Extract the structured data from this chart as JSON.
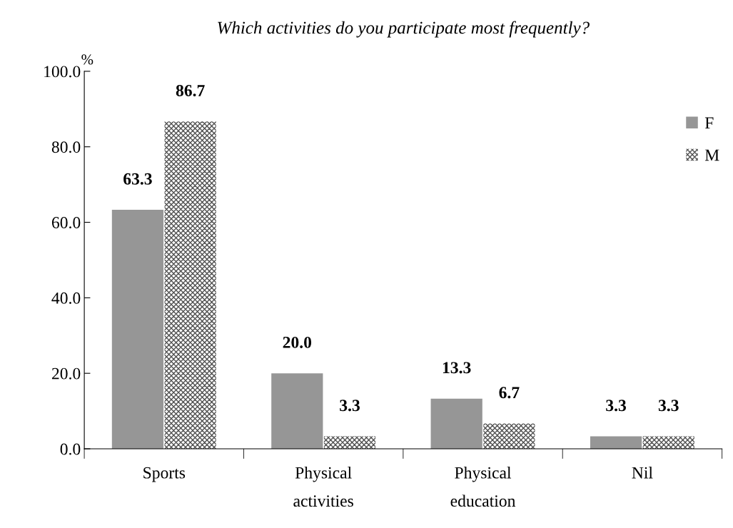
{
  "chart_data": {
    "type": "bar",
    "title": "Which activities do you participate most frequently?",
    "ylabel": "%",
    "categories": [
      "Sports",
      "Physical\nactivities",
      "Physical\neducation",
      "Nil"
    ],
    "series": [
      {
        "name": "F",
        "color": "#969696",
        "values": [
          63.3,
          20.0,
          13.3,
          3.3
        ],
        "value_labels": [
          "63.3",
          "20.0",
          "13.3",
          "3.3"
        ]
      },
      {
        "name": "M",
        "color": "#505050",
        "values": [
          86.7,
          3.3,
          6.7,
          3.3
        ],
        "value_labels": [
          "86.7",
          "3.3",
          "6.7",
          "3.3"
        ]
      }
    ],
    "ylim": [
      0,
      100
    ],
    "yticks": [
      {
        "value": 0,
        "label": "0.0"
      },
      {
        "value": 20,
        "label": "20.0"
      },
      {
        "value": 40,
        "label": "40.0"
      },
      {
        "value": 60,
        "label": "60.0"
      },
      {
        "value": 80,
        "label": "80.0"
      },
      {
        "value": 100,
        "label": "100.0"
      }
    ],
    "legend": "top right",
    "grid": false
  }
}
